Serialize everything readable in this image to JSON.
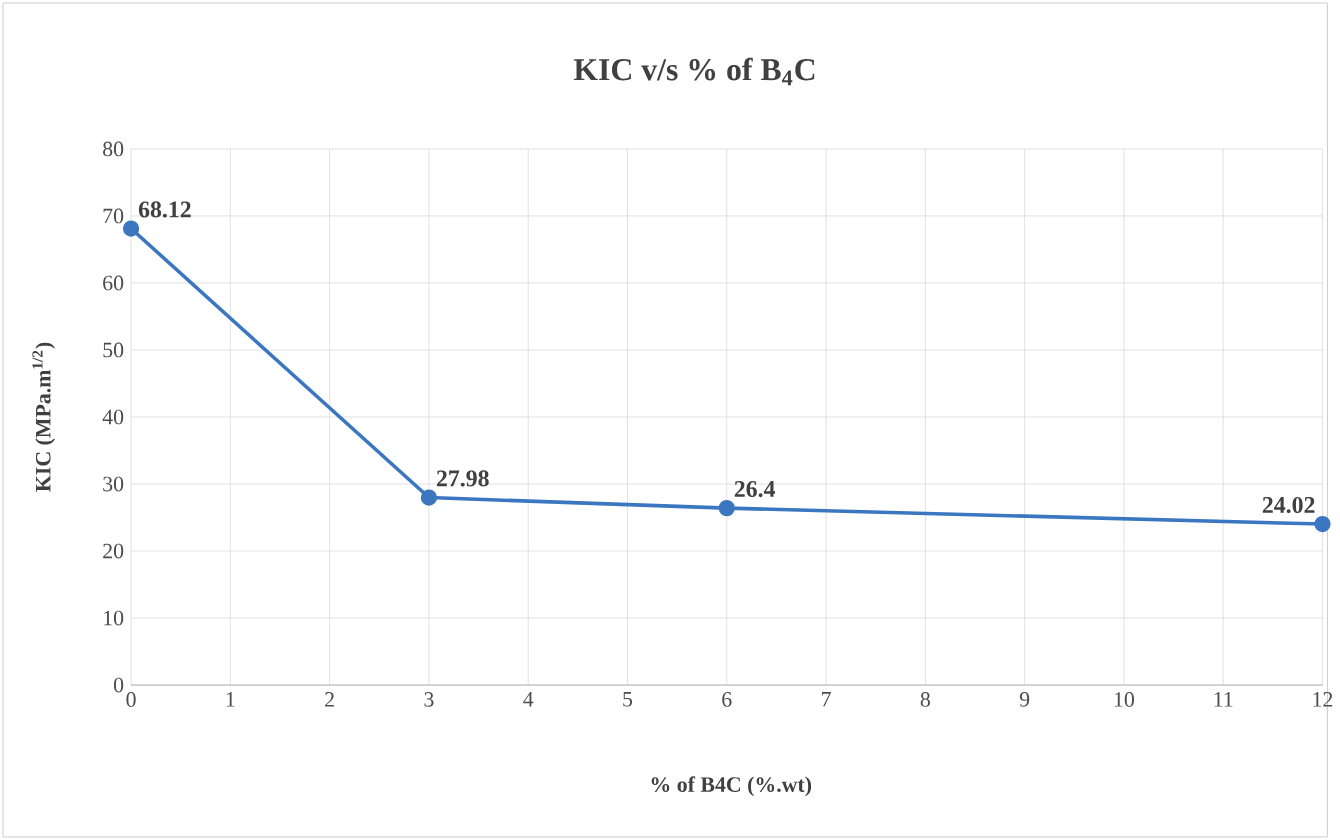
{
  "chart_data": {
    "type": "line",
    "title": "KIC v/s % of B$_{4}$C",
    "xlabel": "% of B4C (%.wt)",
    "ylabel": "KIC (MPa.m$^{1/2}$)",
    "x": [
      0,
      3,
      6,
      12
    ],
    "values": [
      68.12,
      27.98,
      26.4,
      24.02
    ],
    "color": "#3b76c0",
    "xlim": [
      0,
      12
    ],
    "xticks": [
      0,
      1,
      2,
      3,
      4,
      5,
      6,
      7,
      8,
      9,
      10,
      11,
      12
    ],
    "ylim": [
      0,
      80
    ],
    "yticks": [
      0,
      10,
      20,
      30,
      40,
      50,
      60,
      70,
      80
    ],
    "grid": true,
    "marker": "circle",
    "line_style": "solid",
    "data_labels": true
  }
}
